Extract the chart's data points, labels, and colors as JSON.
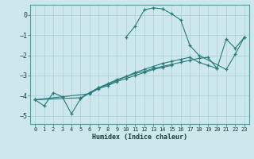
{
  "xlabel": "Humidex (Indice chaleur)",
  "background_color": "#cce8ec",
  "grid_color": "#aacdd4",
  "line_color": "#2a7a78",
  "xlim": [
    -0.5,
    23.5
  ],
  "ylim": [
    -5.4,
    0.5
  ],
  "yticks": [
    0,
    -1,
    -2,
    -3,
    -4,
    -5
  ],
  "xticks": [
    0,
    1,
    2,
    3,
    4,
    5,
    6,
    7,
    8,
    9,
    10,
    11,
    12,
    13,
    14,
    15,
    16,
    17,
    18,
    19,
    20,
    21,
    22,
    23
  ],
  "series": [
    {
      "x": [
        0,
        1,
        2,
        3,
        4,
        5,
        6,
        7,
        8,
        9,
        10,
        11,
        12,
        13,
        14,
        15,
        16,
        17,
        18,
        19,
        20,
        21,
        22,
        23
      ],
      "y": [
        -4.2,
        -4.5,
        -3.85,
        -4.05,
        -4.9,
        -4.15,
        -3.85,
        -3.6,
        -3.45,
        -3.25,
        -3.05,
        -2.85,
        -2.7,
        -2.55,
        -2.4,
        -2.3,
        -2.2,
        -2.1,
        -2.35,
        -2.5,
        -2.65,
        -1.2,
        -1.65,
        -1.1
      ]
    },
    {
      "x": [
        0,
        5,
        6,
        7,
        8,
        9,
        10,
        11,
        12,
        13,
        14,
        15,
        16,
        17,
        18,
        19,
        20
      ],
      "y": [
        -4.2,
        -4.1,
        -3.85,
        -3.6,
        -3.4,
        -3.2,
        -3.05,
        -2.9,
        -2.8,
        -2.65,
        -2.55,
        -2.45,
        -2.35,
        -2.25,
        -2.15,
        -2.1,
        -2.65
      ]
    },
    {
      "x": [
        0,
        6,
        7,
        8,
        9,
        10,
        11,
        12,
        13,
        14,
        15
      ],
      "y": [
        -4.2,
        -3.9,
        -3.65,
        -3.5,
        -3.3,
        -3.15,
        -3.0,
        -2.85,
        -2.7,
        -2.6,
        -2.5
      ]
    },
    {
      "x": [
        10,
        11,
        12,
        13,
        14,
        15,
        16,
        17,
        18,
        21,
        22,
        23
      ],
      "y": [
        -1.1,
        -0.55,
        0.25,
        0.35,
        0.3,
        0.05,
        -0.25,
        -1.5,
        -2.0,
        -2.7,
        -1.95,
        -1.1
      ]
    }
  ]
}
